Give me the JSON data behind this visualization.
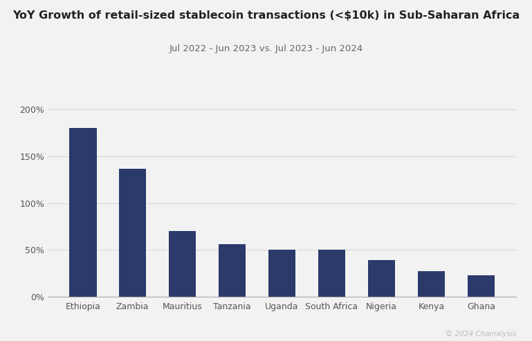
{
  "title": "YoY Growth of retail-sized stablecoin transactions (<$10k) in Sub-Saharan Africa",
  "subtitle": "Jul 2022 - Jun 2023 vs. Jul 2023 - Jun 2024",
  "categories": [
    "Ethiopia",
    "Zambia",
    "Mauritius",
    "Tanzania",
    "Uganda",
    "South Africa",
    "Nigeria",
    "Kenya",
    "Ghana"
  ],
  "values": [
    1.8,
    1.37,
    0.7,
    0.56,
    0.5,
    0.5,
    0.39,
    0.27,
    0.23
  ],
  "bar_color": "#2b3a6b",
  "background_color": "#f2f2f2",
  "yticks": [
    0.0,
    0.5,
    1.0,
    1.5,
    2.0
  ],
  "ytick_labels": [
    "0%",
    "50%",
    "100%",
    "150%",
    "200%"
  ],
  "ylim": [
    0,
    2.15
  ],
  "grid_color": "#d8d8d8",
  "title_fontsize": 11.5,
  "subtitle_fontsize": 9.5,
  "tick_fontsize": 9,
  "watermark": "© 2024 Chainalysis"
}
